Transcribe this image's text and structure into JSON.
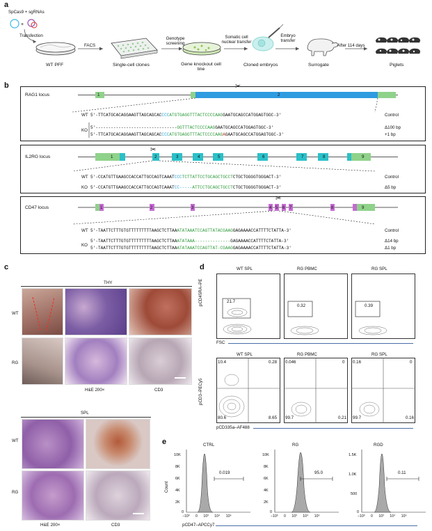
{
  "panel_a": {
    "letter": "a",
    "reagents": "SpCas9 + sgRNAs",
    "steps": [
      "Transfection",
      "FACS",
      "Genotype screening",
      "Somatic cell nuclear transfer",
      "Embryo transfer",
      "After 114 days"
    ],
    "stages": [
      "WT PFF",
      "Single-cell clones",
      "Gene knockout cell line",
      "Cloned embryos",
      "Surrogate",
      "Piglets"
    ]
  },
  "panel_b": {
    "letter": "b",
    "rag1": {
      "title": "RAG1 locus",
      "exon1": "1",
      "exon2": "2",
      "wt_label": "WT",
      "ko_label": "KO",
      "rows": [
        {
          "prefix": "5'-",
          "a": "TTCATGCACAGGAAGTTAGCAGCAC",
          "b": "CCC",
          "c": "ATGTGAGGTTTACTCCCCAAG",
          "d": "GAATGCAGCCATGGAGTGGC",
          "suffix": "-3'",
          "tag": "Control"
        },
        {
          "prefix": "5'-",
          "a": "-------------------------------",
          "b": "",
          "c": "GGTTTACTCCCCAAG",
          "d": "GAATGCAGCCATGGAGTGGC",
          "suffix": "-3'",
          "tag": "Δ100 bp"
        },
        {
          "prefix": "5'-",
          "a": "TTCATGCACAGGAAGTTAGCAGCAC",
          "b": "CCC",
          "c": "ATGTGAGGTTTACTCCCCAAG",
          "d": "GAATGCAGCCATGGAGTGGC",
          "suffix": "-3'",
          "tag": "+1 bp"
        }
      ]
    },
    "il2rg": {
      "title": "IL2RG locus",
      "exons": [
        "1",
        "2",
        "3",
        "4",
        "5",
        "6",
        "7",
        "8",
        "9"
      ],
      "wt_label": "WT",
      "ko_label": "KO",
      "rows": [
        {
          "prefix": "5'-",
          "a": "CCATGTTGAAGCCACCATTGCCAGTCAAAT",
          "b": "CCC",
          "c": "TCTTATTCCTGCAGCTGCCT",
          "d": "CTGCTGGGGTGGGACT",
          "suffix": "-3'",
          "tag": "Control"
        },
        {
          "prefix": "5'-",
          "a": "CCATGTTGAAGCCACCATTGCCAGTCAAAT",
          "b": "CC-----",
          "c": "ATTCCTGCAGCTGCCT",
          "d": "CTGCTGGGGTGGGACT",
          "suffix": "-3'",
          "tag": "Δ5 bp"
        }
      ]
    },
    "cd47": {
      "title": "CD47 locus",
      "exons": [
        "1",
        "2",
        "3",
        "4",
        "5",
        "6",
        "7",
        "8",
        "9"
      ],
      "wt_label": "WT",
      "ko_label": "KO",
      "rows": [
        {
          "prefix": "5'-",
          "a": "TAATTCTTTGTGTTTTTTTTTAAGCTCTTAA",
          "b": "",
          "c": "ATATAAATCCAGTTATACGAAG",
          "d": "GAGAAAACCATTTTCTATTA",
          "suffix": "-3'",
          "tag": "Control"
        },
        {
          "prefix": "5'-",
          "a": "TAATTCTTTGTGTTTTTTTTTAAGCTCTTAA",
          "b": "",
          "c": "ATATAAA--------------",
          "d": "GAGAAAACCATTTTCTATTA",
          "suffix": "-3'",
          "tag": "Δ14 bp"
        },
        {
          "prefix": "5'-",
          "a": "TAATTCTTTGTGTTTTTTTTTAAGCTCTTAA",
          "b": "",
          "c": "ATATAAATCCAGTTAT-CGAAG",
          "d": "GAGAAAACCATTTTCTATTA",
          "suffix": "-3'",
          "tag": "Δ1 bp"
        }
      ]
    }
  },
  "panel_c": {
    "letter": "c",
    "thy_title": "THY",
    "spl_title": "SPL",
    "row_labels": [
      "WT",
      "RG"
    ],
    "col_labels": [
      "H&E 200×",
      "CD3"
    ],
    "spl_row_labels": [
      "WT",
      "RG"
    ],
    "spl_col_labels": [
      "H&E 200×",
      "CD3"
    ]
  },
  "panel_d": {
    "letter": "d",
    "top_titles": [
      "WT SPL",
      "RG PBMC",
      "RG SPL"
    ],
    "top_values": [
      "21.7",
      "0.32",
      "0.39"
    ],
    "top_ylabel": "pCD45RA–PE",
    "top_xlabel": "FSC",
    "bottom_titles": [
      "WT SPL",
      "RG PBMC",
      "RG SPL"
    ],
    "bottom_quadrants": [
      {
        "ul": "10.4",
        "ur": "0.28",
        "ll": "80.6",
        "lr": "8.65"
      },
      {
        "ul": "0.046",
        "ur": "0",
        "ll": "99.7",
        "lr": "0.21"
      },
      {
        "ul": "0.16",
        "ur": "0",
        "ll": "99.7",
        "lr": "0.16"
      }
    ],
    "bottom_ylabel": "pCD3–PECy5",
    "bottom_xlabel": "pCD335a–AF488"
  },
  "panel_e": {
    "letter": "e",
    "titles": [
      "CTRL",
      "RG",
      "RGD"
    ],
    "values": [
      "0.019",
      "95.0",
      "0.11"
    ],
    "ylabel": "Count",
    "xlabel": "pCD47–APCCy7",
    "yticks": [
      [
        "10K",
        "8K",
        "6K",
        "4K",
        "2K",
        "0"
      ],
      [
        "10K",
        "8K",
        "6K",
        "4K",
        "2K",
        "0"
      ],
      [
        "1.5K",
        "1.0K",
        "500",
        "0"
      ]
    ],
    "xticks": [
      "−10³",
      "0",
      "10³",
      "10⁴",
      "10⁵"
    ]
  }
}
